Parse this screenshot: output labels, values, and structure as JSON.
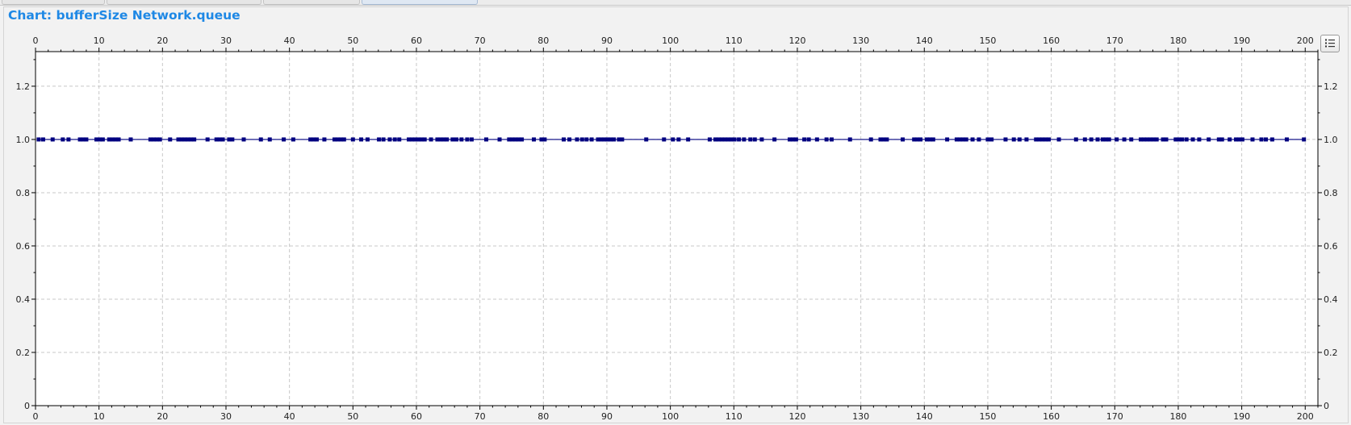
{
  "window": {
    "title": "Chart: bufferSize Network.queue"
  },
  "icons": {
    "legend": "legend-list-icon"
  },
  "colors": {
    "title": "#1e88e5",
    "series": "#000080",
    "grid": "#c8c8c8",
    "plot_background": "#ffffff"
  },
  "chart_data": {
    "type": "line",
    "title": "Chart: bufferSize Network.queue",
    "xlabel": "",
    "ylabel": "",
    "xlim": [
      0,
      202
    ],
    "ylim": [
      0,
      1.33
    ],
    "x_ticks": [
      "0",
      "10",
      "20",
      "30",
      "40",
      "50",
      "60",
      "70",
      "80",
      "90",
      "100",
      "110",
      "120",
      "130",
      "140",
      "150",
      "160",
      "170",
      "180",
      "190",
      "200"
    ],
    "y_ticks": [
      "0",
      "0.2",
      "0.4",
      "0.6",
      "0.8",
      "1.0",
      "1.2"
    ],
    "x_axis_top": true,
    "y_axis_right": true,
    "grid": true,
    "legend": "none",
    "series": [
      {
        "marker": "square",
        "x": [
          0.5,
          1.2,
          2.7,
          4.3,
          5.2,
          7.0,
          7.5,
          8.0,
          9.6,
          10.1,
          10.6,
          11.6,
          12.1,
          12.6,
          13.1,
          15.0,
          18.1,
          18.6,
          19.1,
          19.6,
          21.2,
          22.5,
          23.0,
          23.5,
          24.0,
          24.5,
          25.0,
          27.1,
          28.5,
          29.0,
          29.5,
          30.5,
          31.0,
          32.8,
          35.5,
          36.9,
          39.1,
          40.6,
          43.3,
          43.8,
          44.3,
          45.5,
          47.1,
          47.6,
          48.1,
          48.6,
          50.0,
          51.3,
          52.3,
          54.1,
          54.8,
          55.8,
          56.6,
          57.3,
          58.8,
          59.3,
          59.8,
          60.3,
          60.8,
          61.3,
          62.3,
          63.3,
          63.8,
          64.3,
          64.8,
          65.7,
          66.3,
          67.1,
          68.0,
          68.7,
          71.0,
          73.1,
          74.6,
          75.1,
          75.6,
          76.1,
          76.6,
          78.5,
          79.7,
          80.2,
          83.2,
          84.1,
          85.3,
          86.1,
          86.8,
          87.6,
          88.6,
          89.1,
          89.6,
          90.1,
          90.6,
          91.1,
          91.9,
          92.4,
          96.2,
          99.0,
          100.4,
          101.3,
          102.8,
          106.2,
          107.1,
          107.6,
          108.1,
          108.6,
          109.1,
          109.6,
          110.1,
          110.8,
          111.6,
          112.6,
          113.3,
          114.4,
          116.4,
          118.8,
          119.3,
          119.8,
          121.1,
          121.8,
          123.1,
          124.6,
          125.4,
          128.3,
          131.6,
          133.1,
          133.6,
          134.1,
          136.6,
          138.4,
          138.9,
          139.4,
          140.4,
          140.9,
          141.4,
          143.6,
          145.1,
          145.6,
          146.1,
          146.6,
          147.6,
          148.6,
          150.0,
          150.6,
          152.8,
          154.1,
          155.0,
          156.1,
          157.6,
          158.1,
          158.6,
          159.1,
          159.6,
          161.2,
          163.9,
          165.3,
          166.3,
          167.3,
          168.1,
          168.6,
          169.1,
          170.3,
          171.5,
          172.6,
          174.1,
          174.6,
          175.1,
          175.6,
          176.1,
          176.6,
          177.6,
          178.1,
          179.6,
          180.1,
          180.6,
          181.3,
          182.3,
          183.3,
          184.8,
          186.4,
          186.9,
          188.1,
          189.1,
          189.6,
          190.1,
          191.7,
          193.1,
          193.8,
          194.8,
          197.1,
          199.8
        ],
        "y_constant": 1.0
      }
    ]
  }
}
